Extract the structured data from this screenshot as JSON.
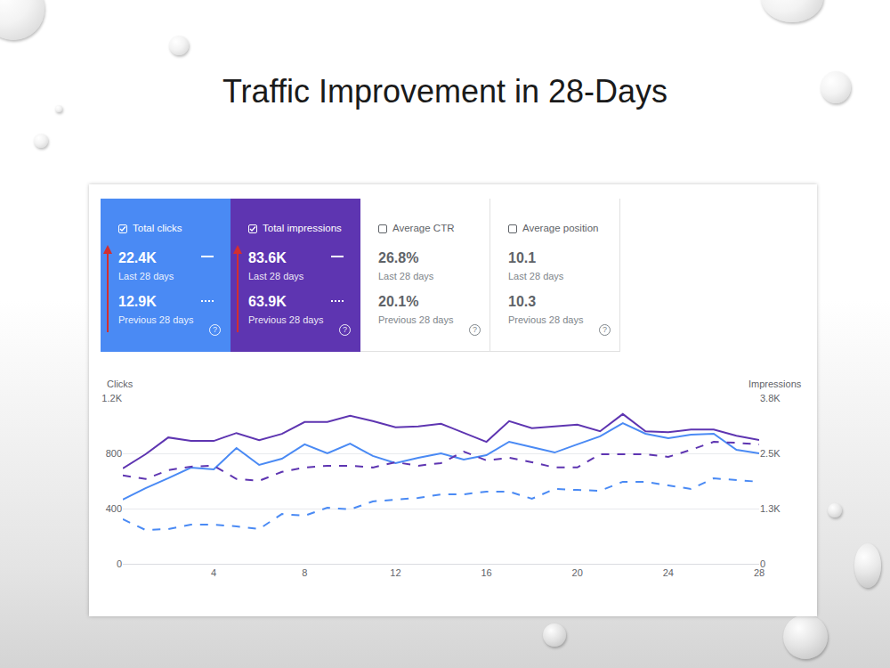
{
  "title": "Traffic Improvement in 28-Days",
  "help_icon": "?",
  "cards": [
    {
      "label": "Total clicks",
      "checked": true,
      "color": "#4a8af4",
      "current": {
        "value": "22.4K",
        "period": "Last 28 days"
      },
      "previous": {
        "value": "12.9K",
        "period": "Previous 28 days"
      }
    },
    {
      "label": "Total impressions",
      "checked": true,
      "color": "#5e35b1",
      "current": {
        "value": "83.6K",
        "period": "Last 28 days"
      },
      "previous": {
        "value": "63.9K",
        "period": "Previous 28 days"
      }
    },
    {
      "label": "Average CTR",
      "checked": false,
      "color": "#ffffff",
      "current": {
        "value": "26.8%",
        "period": "Last 28 days"
      },
      "previous": {
        "value": "20.1%",
        "period": "Previous 28 days"
      }
    },
    {
      "label": "Average position",
      "checked": false,
      "color": "#ffffff",
      "current": {
        "value": "10.1",
        "period": "Last 28 days"
      },
      "previous": {
        "value": "10.3",
        "period": "Previous 28 days"
      }
    }
  ],
  "chart_data": {
    "type": "line",
    "y_label": "Clicks",
    "y2_label": "Impressions",
    "x": [
      0,
      1,
      2,
      3,
      4,
      5,
      6,
      7,
      8,
      9,
      10,
      11,
      12,
      13,
      14,
      15,
      16,
      17,
      18,
      19,
      20,
      21,
      22,
      23,
      24,
      25,
      26,
      27,
      28
    ],
    "xlim": [
      0,
      28
    ],
    "xticks": [
      4,
      8,
      12,
      16,
      20,
      24,
      28
    ],
    "ylim": [
      0,
      1200
    ],
    "yticks": [
      0,
      400,
      800,
      {
        "value": 1200,
        "label": "1.2K"
      }
    ],
    "y2lim": [
      0,
      3750
    ],
    "y2ticks": [
      0,
      {
        "value": 1250,
        "label": "1.3K"
      },
      {
        "value": 2500,
        "label": "2.5K"
      },
      {
        "value": 3750,
        "label": "3.8K"
      }
    ],
    "grid": true,
    "series": [
      {
        "color": "#5e35b1",
        "line_style": "solid",
        "axis": "y2",
        "values": [
          2160,
          2480,
          2860,
          2780,
          2780,
          2960,
          2800,
          2940,
          3210,
          3210,
          3350,
          3230,
          3090,
          3110,
          3170,
          2960,
          2760,
          3230,
          3070,
          3110,
          3150,
          3000,
          3390,
          3000,
          2980,
          3040,
          3040,
          2900,
          2800
        ]
      },
      {
        "color": "#5e35b1",
        "line_style": "dashed",
        "axis": "y2",
        "values": [
          2000,
          1920,
          2120,
          2200,
          2220,
          1920,
          1880,
          2080,
          2180,
          2220,
          2220,
          2180,
          2300,
          2220,
          2280,
          2540,
          2340,
          2400,
          2300,
          2180,
          2180,
          2480,
          2480,
          2480,
          2420,
          2580,
          2760,
          2740,
          2700
        ]
      },
      {
        "color": "#4a8af4",
        "line_style": "solid",
        "values": [
          465,
          548,
          620,
          697,
          684,
          839,
          716,
          761,
          865,
          800,
          871,
          781,
          729,
          768,
          800,
          755,
          787,
          884,
          845,
          806,
          865,
          923,
          1019,
          942,
          910,
          935,
          942,
          826,
          800
        ]
      },
      {
        "color": "#4a8af4",
        "line_style": "dashed",
        "values": [
          323,
          245,
          252,
          284,
          284,
          271,
          252,
          361,
          348,
          406,
          394,
          452,
          465,
          477,
          503,
          503,
          523,
          523,
          471,
          542,
          535,
          529,
          594,
          594,
          568,
          542,
          619,
          606,
          594
        ]
      }
    ]
  }
}
